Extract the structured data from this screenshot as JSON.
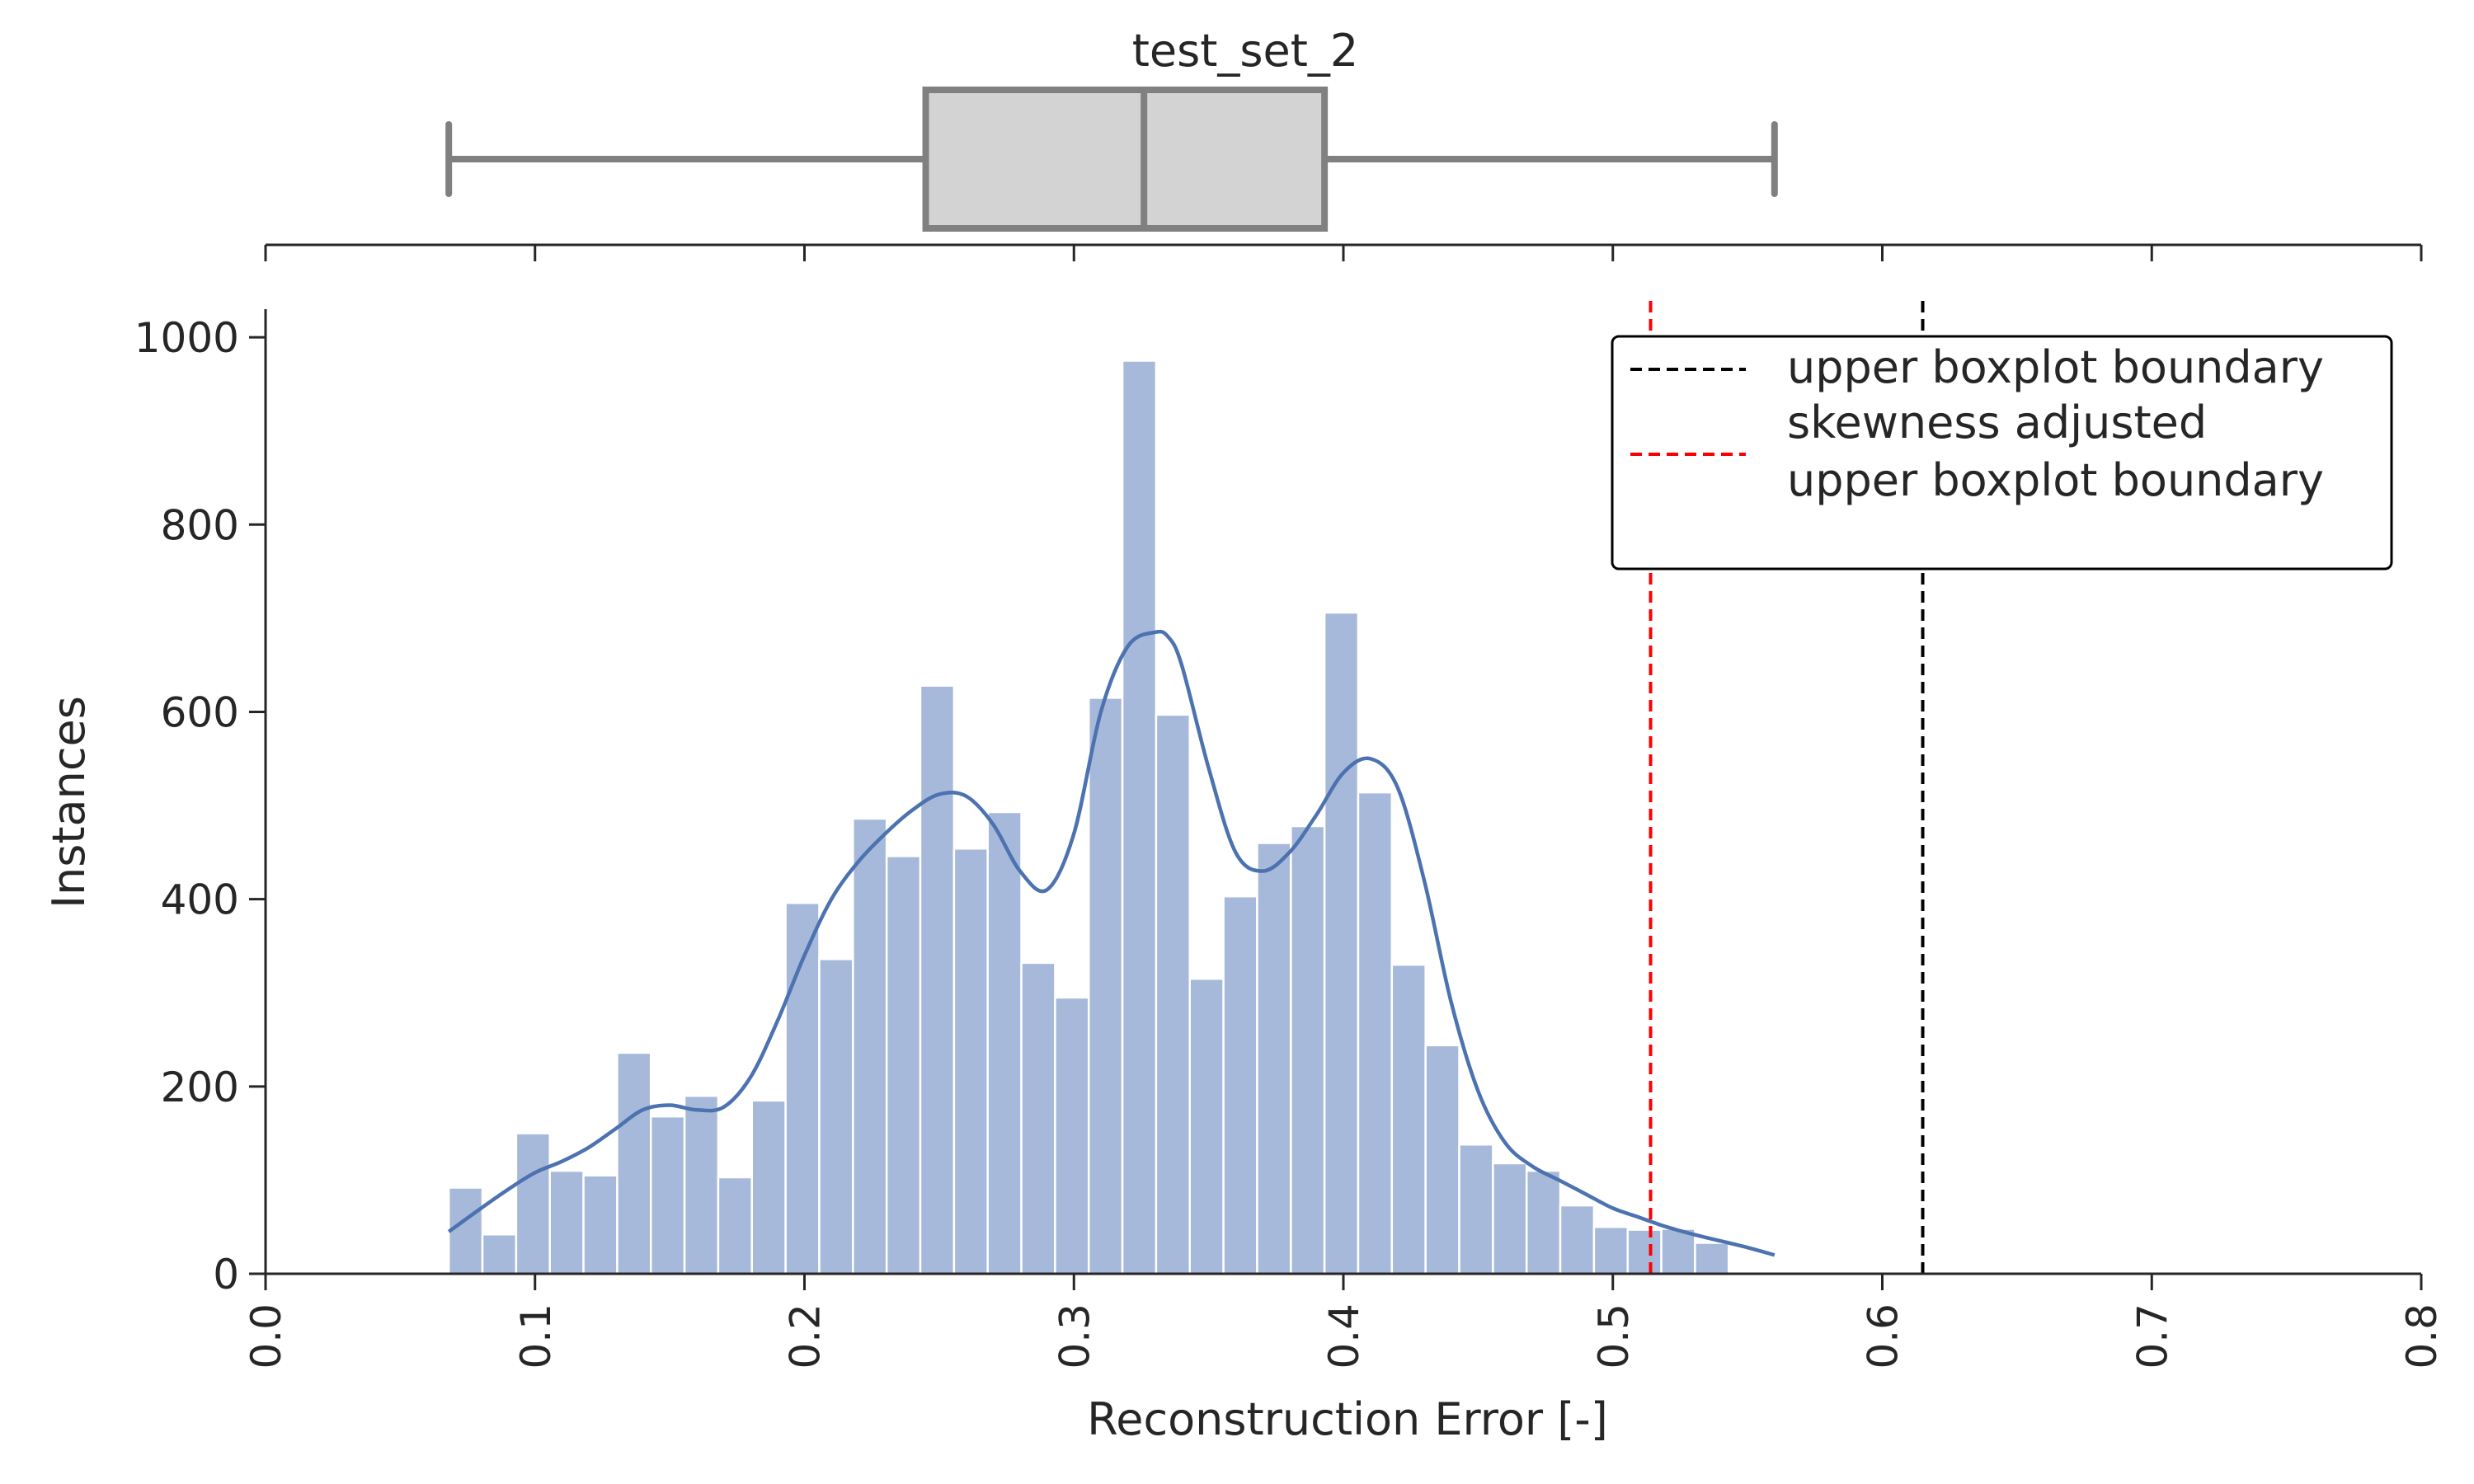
{
  "chart_data": [
    {
      "type": "boxplot",
      "title": "test_set_2",
      "min": 0.068,
      "q1": 0.245,
      "median": 0.326,
      "q3": 0.393,
      "max": 0.56,
      "xlim": [
        0.0,
        0.8
      ],
      "fill_color": "#d3d3d3",
      "line_color": "#808080"
    },
    {
      "type": "bar",
      "xlabel": "Reconstruction Error [-]",
      "ylabel": "Instances",
      "xlim": [
        0.0,
        0.8
      ],
      "ylim": [
        0,
        1030
      ],
      "x_ticks": [
        "0.0",
        "0.1",
        "0.2",
        "0.3",
        "0.4",
        "0.5",
        "0.6",
        "0.7",
        "0.8"
      ],
      "y_ticks": [
        "0",
        "200",
        "400",
        "600",
        "800",
        "1000"
      ],
      "bar_color": "#a7b9da",
      "bin_start": 0.068,
      "bin_width": 0.0125,
      "values": [
        92,
        42,
        150,
        110,
        105,
        236,
        168,
        190,
        103,
        185,
        396,
        336,
        486,
        446,
        628,
        454,
        493,
        332,
        295,
        615,
        975,
        597,
        315,
        403,
        460,
        478,
        706,
        514,
        330,
        244,
        138,
        118,
        110,
        73,
        50,
        47,
        48,
        33
      ],
      "kde": {
        "color": "#4c72b0",
        "x": [
          0.068,
          0.08,
          0.09,
          0.1,
          0.11,
          0.12,
          0.13,
          0.14,
          0.15,
          0.16,
          0.17,
          0.18,
          0.19,
          0.2,
          0.21,
          0.22,
          0.23,
          0.24,
          0.25,
          0.26,
          0.27,
          0.28,
          0.29,
          0.3,
          0.31,
          0.32,
          0.33,
          0.335,
          0.34,
          0.35,
          0.36,
          0.37,
          0.38,
          0.39,
          0.4,
          0.41,
          0.42,
          0.43,
          0.44,
          0.45,
          0.46,
          0.47,
          0.48,
          0.49,
          0.5,
          0.51,
          0.52,
          0.53,
          0.54,
          0.55,
          0.56
        ],
        "y": [
          45,
          70,
          90,
          108,
          120,
          135,
          155,
          175,
          180,
          175,
          178,
          210,
          270,
          340,
          400,
          440,
          470,
          495,
          512,
          510,
          480,
          430,
          410,
          470,
          600,
          670,
          685,
          680,
          650,
          540,
          450,
          430,
          450,
          490,
          535,
          550,
          520,
          420,
          290,
          195,
          140,
          115,
          100,
          85,
          70,
          60,
          50,
          42,
          35,
          28,
          20
        ]
      },
      "vlines": [
        {
          "x": 0.615,
          "color": "#000000",
          "label": "upper boxplot boundary"
        },
        {
          "x": 0.514,
          "color": "#ff0000",
          "label": "skewness adjusted\nupper boxplot boundary"
        }
      ],
      "legend": {
        "position": "top-right",
        "entries": [
          {
            "lines": [
              "upper boxplot boundary"
            ],
            "color": "#000000"
          },
          {
            "lines": [
              "skewness adjusted",
              "upper boxplot boundary"
            ],
            "color": "#ff0000"
          }
        ]
      }
    }
  ]
}
